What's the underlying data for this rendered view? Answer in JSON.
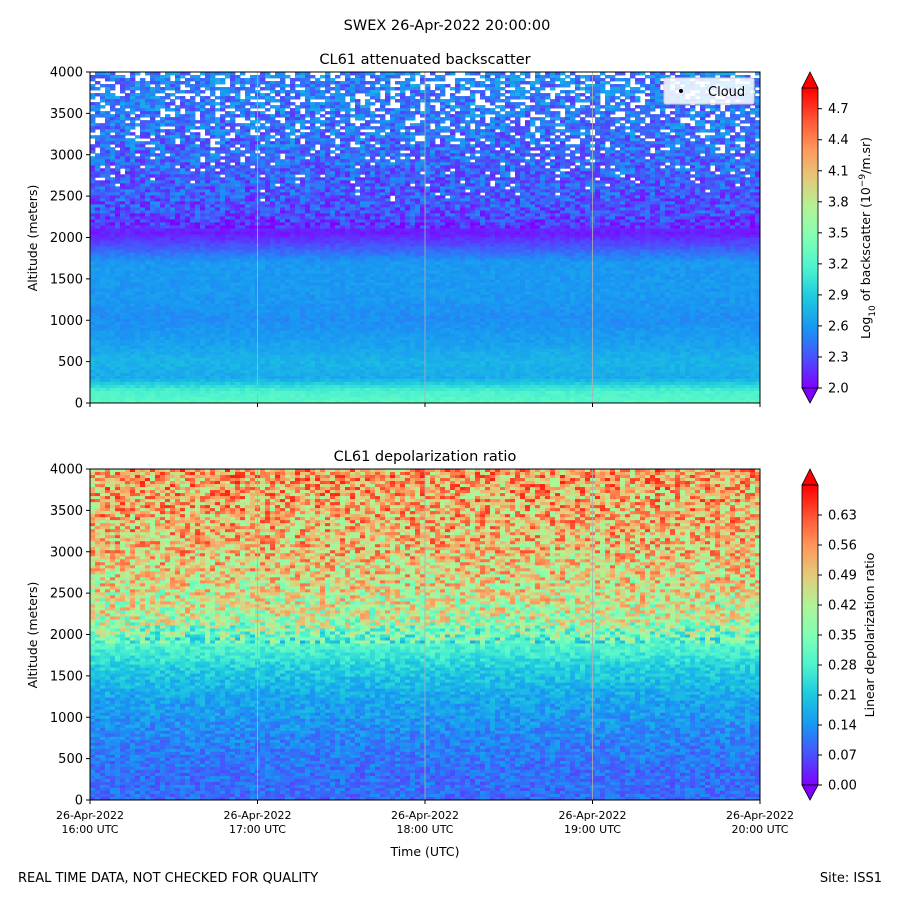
{
  "figure": {
    "title": "SWEX 26-Apr-2022 20:00:00",
    "footer_left": "REAL TIME DATA, NOT CHECKED FOR QUALITY",
    "footer_right": "Site: ISS1"
  },
  "colors": {
    "rainbow": [
      "#8000ff",
      "#4a50fc",
      "#1996f3",
      "#1cc9df",
      "#4df3ce",
      "#80ffb4",
      "#b2f396",
      "#e4c97a",
      "#ff9659",
      "#ff5030",
      "#ff0000"
    ]
  },
  "chart_data": [
    {
      "type": "heatmap",
      "title": "CL61 attenuated backscatter",
      "xlabel": "",
      "ylabel": "Altitude (meters)",
      "xlim": [
        "16:00",
        "20:00"
      ],
      "x_ticks": [
        "16:00",
        "17:00",
        "18:00",
        "19:00",
        "20:00"
      ],
      "x_tick_labels_visible": false,
      "ylim": [
        0,
        4000
      ],
      "y_ticks": [
        0,
        500,
        1000,
        1500,
        2000,
        2500,
        3000,
        3500,
        4000
      ],
      "y_tick_labels": [
        "0",
        "500",
        "1000",
        "1500",
        "2000",
        "2500",
        "3000",
        "3500",
        "4000"
      ],
      "vertical_gridlines": true,
      "legend": {
        "placement": "top-right",
        "entries": [
          {
            "label": "Cloud",
            "marker": "dot",
            "color": "#000000"
          }
        ]
      },
      "colorbar": {
        "label_prefix": "Log",
        "label_sub": "10",
        "label_mid": " of backscatter (10",
        "label_sup": "−9",
        "label_suffix": "/m.sr)",
        "range": [
          2.0,
          4.9
        ],
        "ticks": [
          2.0,
          2.3,
          2.6,
          2.9,
          3.2,
          3.5,
          3.8,
          4.1,
          4.4,
          4.7
        ],
        "tick_labels": [
          "2.0",
          "2.3",
          "2.6",
          "2.9",
          "3.2",
          "3.5",
          "3.8",
          "4.1",
          "4.4",
          "4.7"
        ],
        "extend": "both"
      },
      "profile_description": "Altitude layers of log10 backscatter",
      "profile": [
        {
          "altitude": 0,
          "value": 3.25
        },
        {
          "altitude": 150,
          "value": 3.15
        },
        {
          "altitude": 300,
          "value": 2.7
        },
        {
          "altitude": 500,
          "value": 2.75
        },
        {
          "altitude": 700,
          "value": 2.65
        },
        {
          "altitude": 1000,
          "value": 2.55
        },
        {
          "altitude": 1300,
          "value": 2.6
        },
        {
          "altitude": 1700,
          "value": 2.6
        },
        {
          "altitude": 1900,
          "value": 2.3
        },
        {
          "altitude": 2050,
          "value": 2.1
        },
        {
          "altitude": 2300,
          "value": 2.3
        },
        {
          "altitude": 3000,
          "value": 2.4
        },
        {
          "altitude": 4000,
          "value": 2.5
        }
      ]
    },
    {
      "type": "heatmap",
      "title": "CL61 depolarization ratio",
      "xlabel": "Time (UTC)",
      "ylabel": "Altitude (meters)",
      "xlim": [
        "16:00",
        "20:00"
      ],
      "x_ticks": [
        "16:00",
        "17:00",
        "18:00",
        "19:00",
        "20:00"
      ],
      "x_tick_labels": [
        [
          "26-Apr-2022",
          "16:00 UTC"
        ],
        [
          "26-Apr-2022",
          "17:00 UTC"
        ],
        [
          "26-Apr-2022",
          "18:00 UTC"
        ],
        [
          "26-Apr-2022",
          "19:00 UTC"
        ],
        [
          "26-Apr-2022",
          "20:00 UTC"
        ]
      ],
      "ylim": [
        0,
        4000
      ],
      "y_ticks": [
        0,
        500,
        1000,
        1500,
        2000,
        2500,
        3000,
        3500,
        4000
      ],
      "y_tick_labels": [
        "0",
        "500",
        "1000",
        "1500",
        "2000",
        "2500",
        "3000",
        "3500",
        "4000"
      ],
      "vertical_gridlines": true,
      "colorbar": {
        "label": "Linear depolarization ratio",
        "range": [
          0.0,
          0.7
        ],
        "ticks": [
          0.0,
          0.07,
          0.14,
          0.21,
          0.28,
          0.35,
          0.42,
          0.49,
          0.56,
          0.63
        ],
        "tick_labels": [
          "0.00",
          "0.07",
          "0.14",
          "0.21",
          "0.28",
          "0.35",
          "0.42",
          "0.49",
          "0.56",
          "0.63"
        ],
        "extend": "both"
      },
      "profile_description": "Altitude layers of depolarization ratio",
      "profile": [
        {
          "altitude": 0,
          "value": 0.1
        },
        {
          "altitude": 300,
          "value": 0.1
        },
        {
          "altitude": 700,
          "value": 0.12
        },
        {
          "altitude": 1200,
          "value": 0.16
        },
        {
          "altitude": 1600,
          "value": 0.22
        },
        {
          "altitude": 1900,
          "value": 0.3
        },
        {
          "altitude": 2200,
          "value": 0.42
        },
        {
          "altitude": 3000,
          "value": 0.5
        },
        {
          "altitude": 4000,
          "value": 0.54
        }
      ]
    }
  ]
}
